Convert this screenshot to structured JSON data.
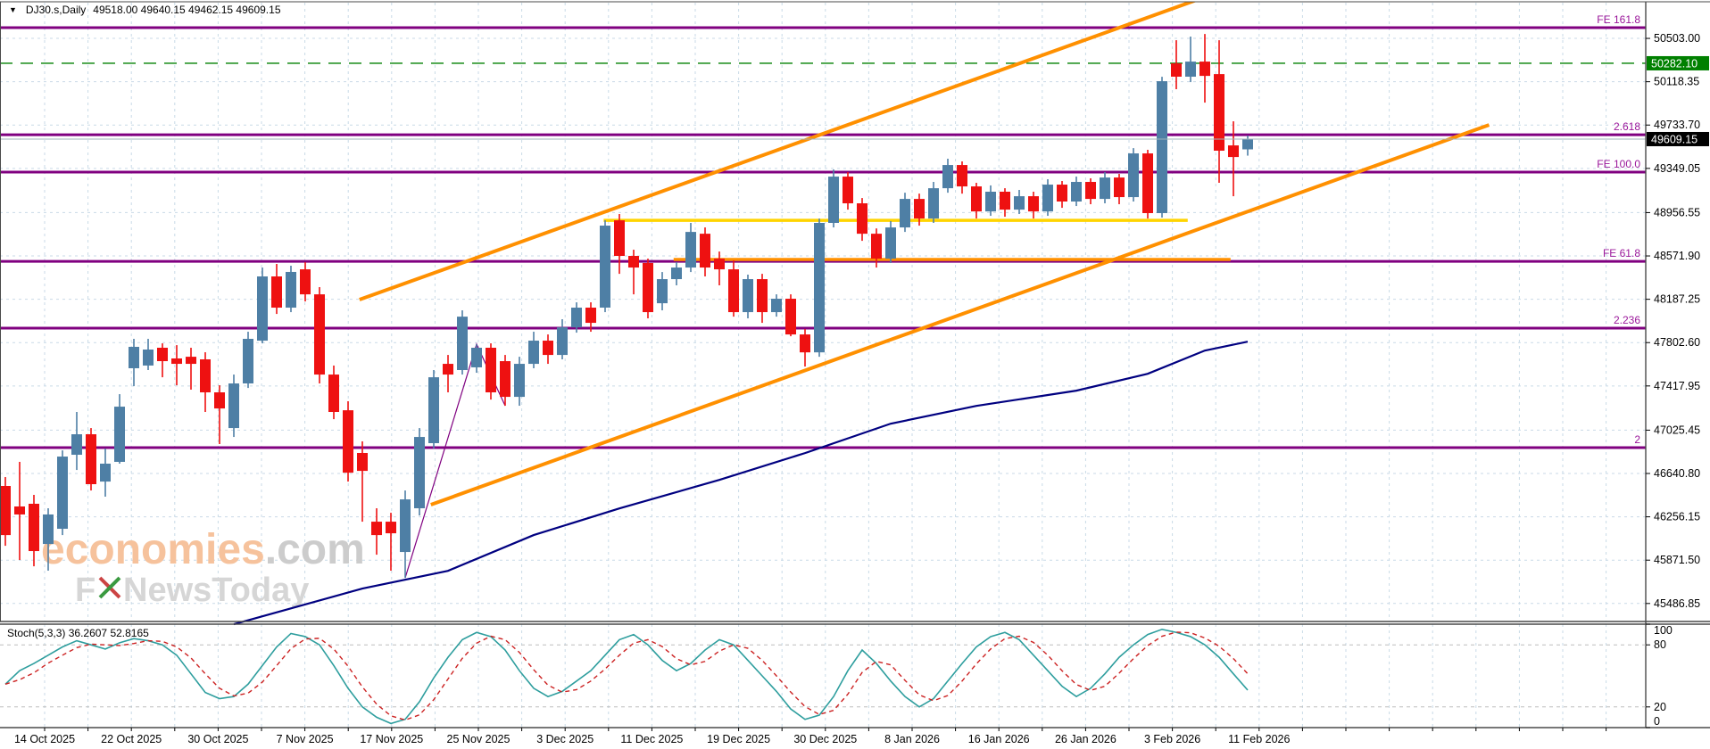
{
  "window": {
    "symbol_label": "DJ30.s,Daily",
    "ohlc_label": "49518.00 49640.15 49462.15 49609.15"
  },
  "watermark": {
    "brand": "economies",
    "brand_suffix": ".com",
    "subbrand_prefix": "F",
    "subbrand_suffix": "NewsToday",
    "brand_color": "#f6c29c",
    "suffix_color": "#cccccc",
    "sub_color": "#d6d6d6",
    "x_red": "#cc4444",
    "x_green": "#3a9a40"
  },
  "chart_data": {
    "type": "candlestick",
    "symbol": "DJ30.s",
    "timeframe": "Daily",
    "last_candle": {
      "open": 49518.0,
      "high": 49640.15,
      "low": 49462.15,
      "close": 49609.15
    },
    "ylim": [
      45327,
      50820
    ],
    "price_ticks": [
      "50503.00",
      "50118.35",
      "49733.70",
      "49349.05",
      "48956.55",
      "48571.90",
      "48187.25",
      "47802.60",
      "47417.95",
      "47025.45",
      "46640.80",
      "46256.15",
      "45871.50",
      "45486.85"
    ],
    "date_labels": [
      "14 Oct 2025",
      "22 Oct 2025",
      "30 Oct 2025",
      "7 Nov 2025",
      "17 Nov 2025",
      "25 Nov 2025",
      "3 Dec 2025",
      "11 Dec 2025",
      "19 Dec 2025",
      "30 Dec 2025",
      "8 Jan 2026",
      "16 Jan 2026",
      "26 Jan 2026",
      "3 Feb 2026",
      "11 Feb 2026"
    ],
    "candles": [
      [
        46530,
        46609,
        45999,
        46094
      ],
      [
        46348,
        46744,
        45873,
        46277
      ],
      [
        46372,
        46451,
        45817,
        45952
      ],
      [
        46015,
        46332,
        45778,
        46277
      ],
      [
        46150,
        46846,
        46094,
        46791
      ],
      [
        46807,
        47187,
        46672,
        46989
      ],
      [
        46989,
        47044,
        46490,
        46546
      ],
      [
        46569,
        46862,
        46435,
        46728
      ],
      [
        46744,
        47345,
        46728,
        47234
      ],
      [
        47575,
        47836,
        47416,
        47765
      ],
      [
        47599,
        47836,
        47559,
        47741
      ],
      [
        47757,
        47796,
        47495,
        47638
      ],
      [
        47662,
        47780,
        47424,
        47614
      ],
      [
        47677,
        47757,
        47385,
        47614
      ],
      [
        47654,
        47717,
        47187,
        47361
      ],
      [
        47361,
        47424,
        46902,
        47218
      ],
      [
        47044,
        47519,
        46965,
        47440
      ],
      [
        47440,
        47899,
        47400,
        47836
      ],
      [
        47820,
        48469,
        47796,
        48390
      ],
      [
        48390,
        48501,
        48057,
        48113
      ],
      [
        48113,
        48485,
        48073,
        48430
      ],
      [
        48453,
        48517,
        48168,
        48231
      ],
      [
        48231,
        48295,
        47440,
        47519
      ],
      [
        47519,
        47599,
        47123,
        47187
      ],
      [
        47202,
        47282,
        46569,
        46648
      ],
      [
        46823,
        46926,
        46213,
        46664
      ],
      [
        46213,
        46332,
        45920,
        46094
      ],
      [
        46213,
        46292,
        45778,
        46110
      ],
      [
        45944,
        46490,
        45714,
        46411
      ],
      [
        46332,
        47044,
        46268,
        46965
      ],
      [
        46910,
        47559,
        46862,
        47495
      ],
      [
        47614,
        47693,
        47361,
        47519
      ],
      [
        47559,
        48089,
        47519,
        48033
      ],
      [
        47583,
        47788,
        47535,
        47757
      ],
      [
        47757,
        47796,
        47297,
        47361
      ],
      [
        47638,
        47693,
        47242,
        47321
      ],
      [
        47321,
        47677,
        47242,
        47614
      ],
      [
        47614,
        47899,
        47575,
        47820
      ],
      [
        47820,
        47875,
        47614,
        47693
      ],
      [
        47693,
        48010,
        47654,
        47938
      ],
      [
        47938,
        48160,
        47891,
        48113
      ],
      [
        48113,
        48160,
        47899,
        47978
      ],
      [
        48113,
        48888,
        48073,
        48841
      ],
      [
        48888,
        48944,
        48413,
        48572
      ],
      [
        48572,
        48627,
        48231,
        48469
      ],
      [
        48509,
        48548,
        48018,
        48073
      ],
      [
        48152,
        48429,
        48089,
        48366
      ],
      [
        48366,
        48517,
        48311,
        48469
      ],
      [
        48469,
        48865,
        48429,
        48785
      ],
      [
        48769,
        48825,
        48390,
        48469
      ],
      [
        48548,
        48611,
        48311,
        48453
      ],
      [
        48453,
        48532,
        48033,
        48073
      ],
      [
        48073,
        48406,
        48018,
        48366
      ],
      [
        48366,
        48413,
        47978,
        48073
      ],
      [
        48073,
        48231,
        48033,
        48192
      ],
      [
        48192,
        48231,
        47859,
        47875
      ],
      [
        47875,
        47923,
        47590,
        47716
      ],
      [
        47716,
        48904,
        47677,
        48865
      ],
      [
        48865,
        49339,
        48825,
        49276
      ],
      [
        49276,
        49316,
        48983,
        49039
      ],
      [
        49039,
        49086,
        48706,
        48769
      ],
      [
        48769,
        48816,
        48469,
        48548
      ],
      [
        48548,
        48881,
        48509,
        48825
      ],
      [
        48825,
        49133,
        48785,
        49078
      ],
      [
        49078,
        49125,
        48841,
        48904
      ],
      [
        48904,
        49229,
        48865,
        49173
      ],
      [
        49173,
        49435,
        49133,
        49379
      ],
      [
        49379,
        49411,
        49125,
        49189
      ],
      [
        49189,
        49221,
        48904,
        48967
      ],
      [
        48967,
        49198,
        48928,
        49142
      ],
      [
        49142,
        49173,
        48920,
        48983
      ],
      [
        48983,
        49158,
        48944,
        49102
      ],
      [
        49102,
        49142,
        48904,
        48967
      ],
      [
        48967,
        49253,
        48928,
        49205
      ],
      [
        49205,
        49237,
        48999,
        49055
      ],
      [
        49055,
        49276,
        49015,
        49229
      ],
      [
        49229,
        49261,
        49031,
        49078
      ],
      [
        49078,
        49316,
        49039,
        49268
      ],
      [
        49268,
        49300,
        49031,
        49094
      ],
      [
        49094,
        49529,
        49055,
        49482
      ],
      [
        49482,
        49514,
        48904,
        48952
      ],
      [
        48952,
        50162,
        48912,
        50123
      ],
      [
        50281,
        50487,
        50052,
        50163
      ],
      [
        50163,
        50519,
        50115,
        50297
      ],
      [
        50297,
        50542,
        49933,
        50170
      ],
      [
        50186,
        50487,
        49221,
        49506
      ],
      [
        49553,
        49767,
        49102,
        49450
      ],
      [
        49518.0,
        49640.15,
        49462.15,
        49609.15
      ]
    ],
    "ask_line": {
      "price": 50282.1,
      "label": "50282.10",
      "color": "#008000"
    },
    "bid_line": {
      "price": 49609.15,
      "label": "49609.15",
      "color": "#9fb3ba"
    },
    "fib_expansion": {
      "anchor_indices": [
        28,
        33,
        35
      ],
      "anchor_prices": [
        45714,
        47788,
        47242
      ],
      "levels": [
        {
          "label": "FE 61.8",
          "price": 48524
        },
        {
          "label": "FE 100.0",
          "price": 49316
        },
        {
          "label": "FE 161.8",
          "price": 50598
        }
      ]
    },
    "fib_levels_secondary": [
      {
        "label": "2",
        "price": 46870
      },
      {
        "label": "2.236",
        "price": 47931
      },
      {
        "label": "2.618",
        "price": 49648
      }
    ],
    "channel_lines": [
      {
        "i1": 24.8,
        "p1": 48184,
        "i2": 83.4,
        "p2": 50843
      },
      {
        "i1": 29.8,
        "p1": 46364,
        "i2": 103.9,
        "p2": 49735
      }
    ],
    "yellow_hline": {
      "price": 48888,
      "i1": 41.9,
      "i2": 82.8,
      "color": "#ffd400"
    },
    "orange_hline": {
      "price": 48540,
      "i1": 46.8,
      "i2": 85.8,
      "color": "#ff9000"
    },
    "ma_line": {
      "color": "#000080",
      "points": [
        [
          16,
          45303
        ],
        [
          25,
          45619
        ],
        [
          31,
          45777
        ],
        [
          37,
          46094
        ],
        [
          43,
          46331
        ],
        [
          50,
          46584
        ],
        [
          56,
          46822
        ],
        [
          62,
          47083
        ],
        [
          68,
          47241
        ],
        [
          75,
          47376
        ],
        [
          80,
          47526
        ],
        [
          84,
          47732
        ],
        [
          87,
          47811
        ]
      ]
    },
    "stochastic": {
      "name": "Stoch(5,3,3)",
      "k_value": "36.2607",
      "d_value": "52.8165",
      "scale_ticks": [
        "100",
        "80",
        "20",
        "0"
      ],
      "level_lines": [
        80,
        20
      ],
      "k": [
        42,
        55,
        62,
        70,
        78,
        84,
        80,
        76,
        82,
        86,
        84,
        80,
        70,
        52,
        34,
        28,
        30,
        42,
        60,
        78,
        91,
        88,
        80,
        60,
        38,
        20,
        10,
        4,
        8,
        25,
        48,
        68,
        85,
        92,
        88,
        75,
        55,
        38,
        30,
        35,
        45,
        55,
        70,
        85,
        90,
        80,
        65,
        55,
        62,
        75,
        85,
        80,
        65,
        50,
        35,
        18,
        8,
        12,
        30,
        55,
        75,
        62,
        45,
        30,
        20,
        28,
        45,
        62,
        78,
        88,
        92,
        85,
        70,
        55,
        40,
        30,
        38,
        52,
        68,
        80,
        90,
        95,
        92,
        88,
        80,
        68,
        52,
        36.2607
      ]
    },
    "style": {
      "bull_color": "#4e7fa5",
      "bear_color": "#ee1111",
      "grid_color": "#c9dae7",
      "fib_line_color": "#800080",
      "fib_label_color": "#9b189b",
      "channel_color": "#ff9000",
      "stoch_k_color": "#2e9e9e",
      "stoch_d_color": "#cc2222",
      "axis_text_color": "#000000",
      "border_color": "#4a4a4a"
    }
  }
}
